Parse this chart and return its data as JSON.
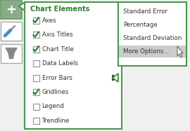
{
  "panel_title": "Chart Elements",
  "panel_title_color": "#2e7d32",
  "items": [
    {
      "label": "Axes",
      "checked": true
    },
    {
      "label": "Axis Titles",
      "checked": true
    },
    {
      "label": "Chart Title",
      "checked": true
    },
    {
      "label": "Data Labels",
      "checked": false
    },
    {
      "label": "Error Bars",
      "checked": false,
      "has_arrow": true
    },
    {
      "label": "Gridlines",
      "checked": true
    },
    {
      "label": "Legend",
      "checked": false
    },
    {
      "label": "Trendline",
      "checked": false
    }
  ],
  "submenu_items": [
    {
      "label": "Standard Error",
      "highlighted": false
    },
    {
      "label": "Percentage",
      "highlighted": false
    },
    {
      "label": "Standard Deviation",
      "highlighted": false
    },
    {
      "label": "More Options...",
      "highlighted": true
    }
  ],
  "main_panel_border": "#4a9a4a",
  "sub_panel_border": "#4a9a4a",
  "bg_white": "#ffffff",
  "bg_gray": "#cccccc",
  "check_color": "#2e7d32",
  "text_color": "#333333",
  "arrow_color": "#1a1a1a",
  "icon_plus_bg": "#7a9a7a",
  "icon_border": "#aaaaaa",
  "icon_inner_bg": "#c8c8c8"
}
